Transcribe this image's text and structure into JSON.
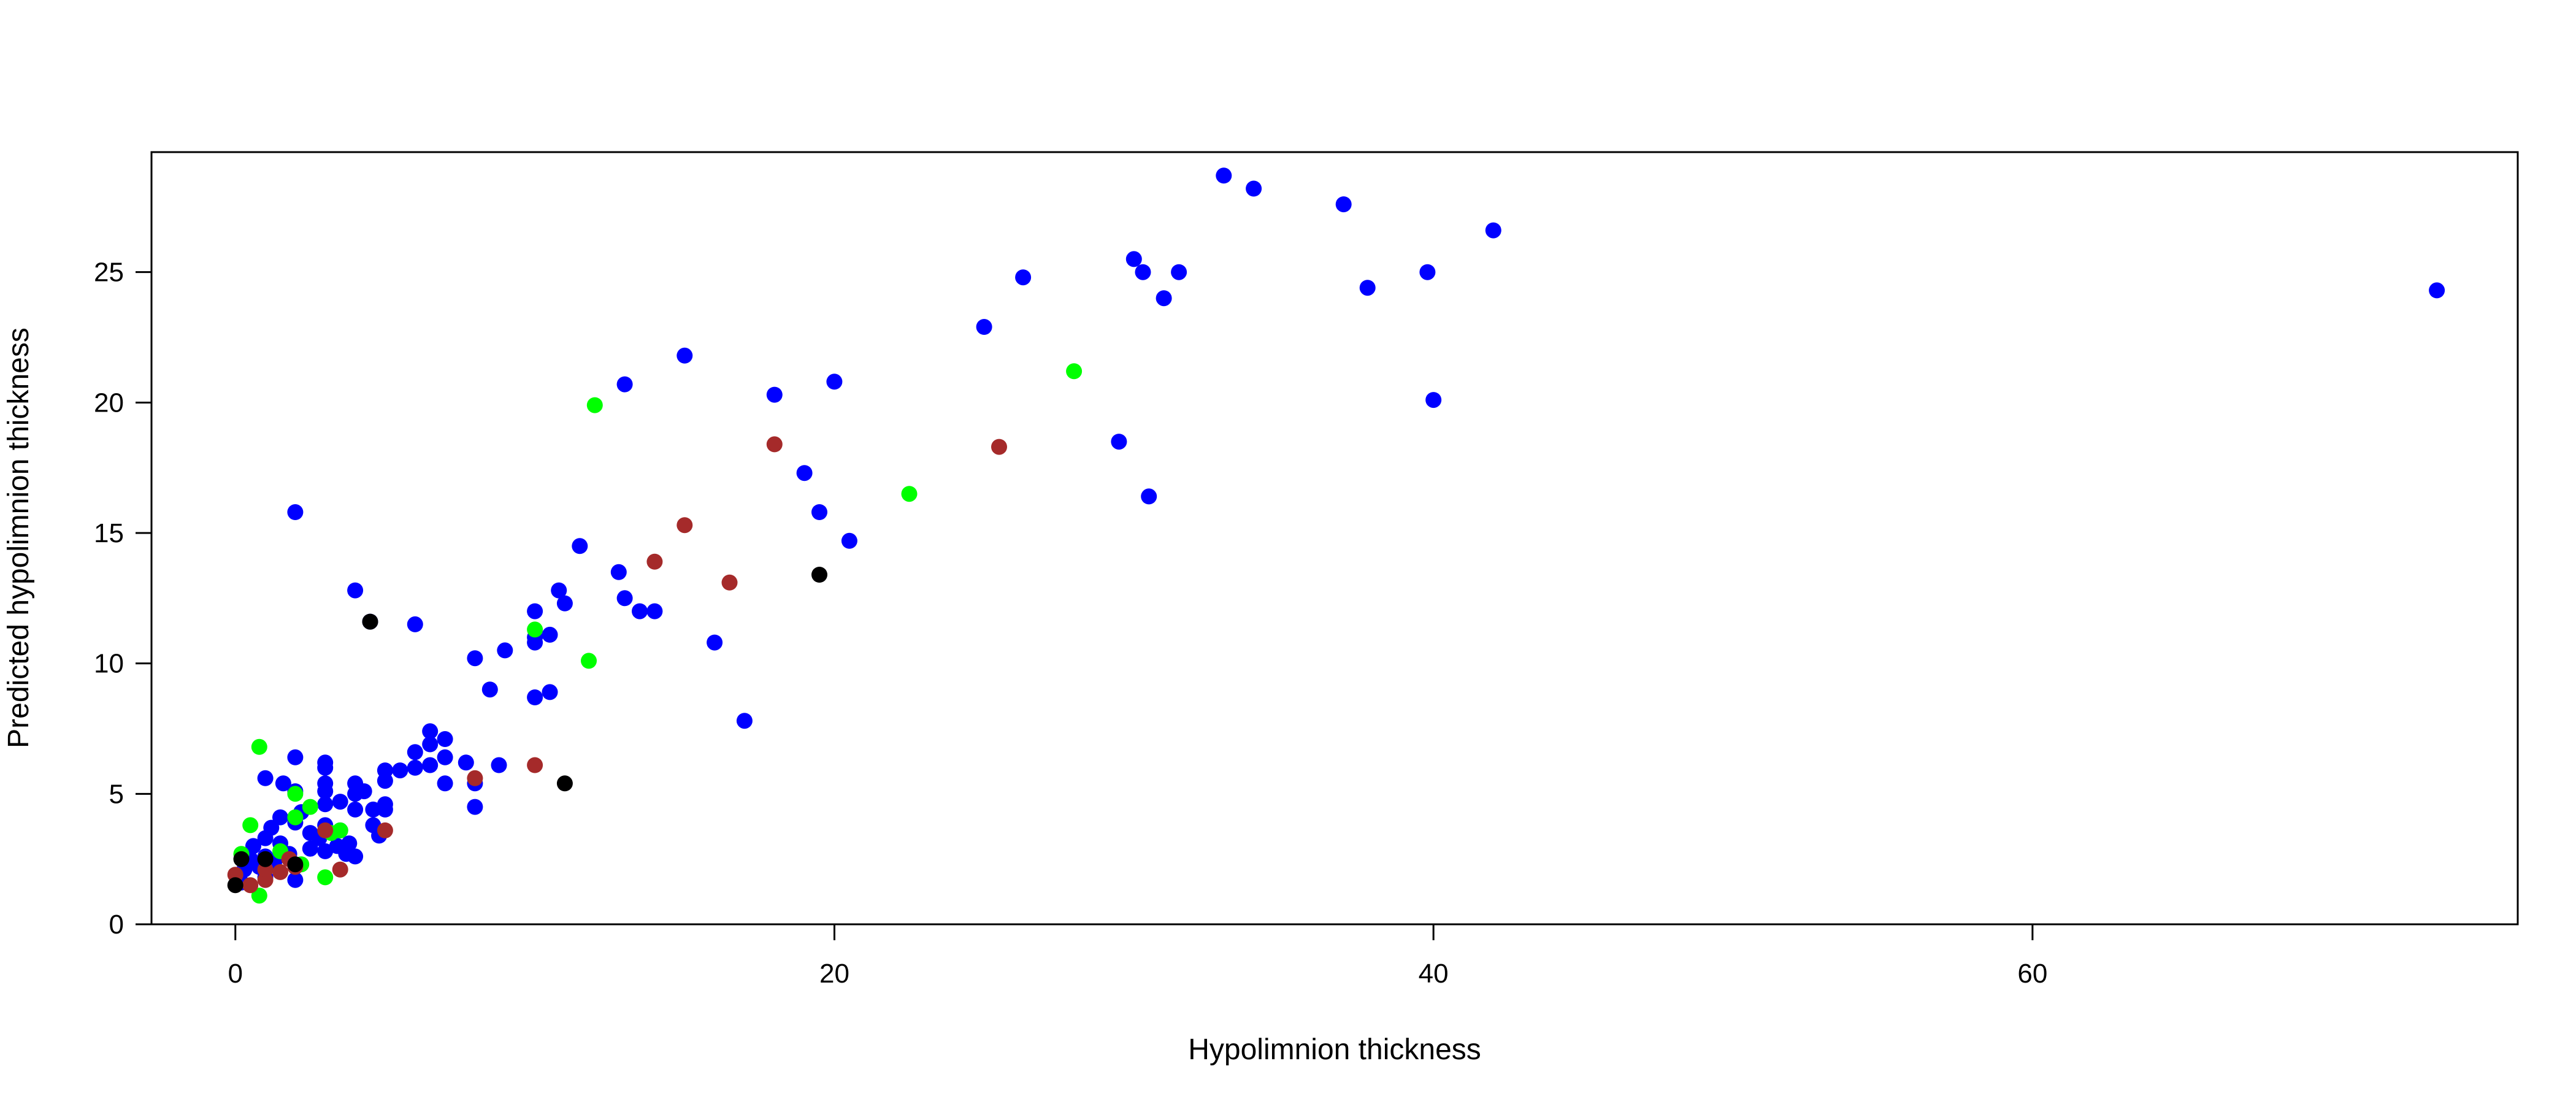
{
  "chart_data": {
    "type": "scatter",
    "title": "",
    "xlabel": "Hypolimnion thickness",
    "ylabel": "Predicted hypolimnion thickness",
    "xlim": [
      -2.8,
      76.2
    ],
    "ylim": [
      0,
      29.6
    ],
    "xticks": [
      0,
      20,
      40,
      60
    ],
    "yticks": [
      0,
      5,
      10,
      15,
      20,
      25
    ],
    "grid": false,
    "legend": "none",
    "series": [
      {
        "color": "#0000ff",
        "points": [
          [
            2,
            15.8
          ],
          [
            4,
            12.8
          ],
          [
            6,
            11.5
          ],
          [
            4.5,
            11.6
          ],
          [
            0.2,
            1.6
          ],
          [
            0.3,
            2.1
          ],
          [
            0.5,
            2.5
          ],
          [
            0.6,
            3
          ],
          [
            0.8,
            2.2
          ],
          [
            1,
            1.8
          ],
          [
            1,
            2.6
          ],
          [
            1,
            3.3
          ],
          [
            1,
            5.6
          ],
          [
            1.2,
            3.7
          ],
          [
            1.3,
            2.4
          ],
          [
            1.5,
            3.1
          ],
          [
            1.5,
            4.1
          ],
          [
            1.6,
            5.4
          ],
          [
            1.8,
            2.7
          ],
          [
            2,
            1.7
          ],
          [
            2,
            2.3
          ],
          [
            2,
            3.9
          ],
          [
            2,
            5.1
          ],
          [
            2,
            6.4
          ],
          [
            2.2,
            4.3
          ],
          [
            2.5,
            2.9
          ],
          [
            2.5,
            3.5
          ],
          [
            2.8,
            3.3
          ],
          [
            3,
            2.8
          ],
          [
            3,
            3.8
          ],
          [
            3,
            4.6
          ],
          [
            3,
            5.1
          ],
          [
            3,
            5.4
          ],
          [
            3,
            6
          ],
          [
            3,
            6.2
          ],
          [
            3.4,
            3
          ],
          [
            3.5,
            3.6
          ],
          [
            3.5,
            4.7
          ],
          [
            3.7,
            2.7
          ],
          [
            3.8,
            3.1
          ],
          [
            4,
            2.6
          ],
          [
            4,
            4.4
          ],
          [
            4,
            5
          ],
          [
            4,
            5.4
          ],
          [
            4.3,
            5.1
          ],
          [
            4.6,
            3.8
          ],
          [
            4.6,
            4.4
          ],
          [
            4.8,
            3.4
          ],
          [
            5,
            4.4
          ],
          [
            5,
            4.6
          ],
          [
            5,
            5.5
          ],
          [
            5,
            5.9
          ],
          [
            5.5,
            5.9
          ],
          [
            6,
            6
          ],
          [
            6,
            6.6
          ],
          [
            6.5,
            6.1
          ],
          [
            6.5,
            6.9
          ],
          [
            6.5,
            7.4
          ],
          [
            7,
            5.4
          ],
          [
            7,
            6.4
          ],
          [
            7,
            7.1
          ],
          [
            7.7,
            6.2
          ],
          [
            8,
            4.5
          ],
          [
            8,
            5.4
          ],
          [
            8,
            10.2
          ],
          [
            8.5,
            9
          ],
          [
            8.8,
            6.1
          ],
          [
            9,
            10.5
          ],
          [
            10,
            8.7
          ],
          [
            10,
            10.8
          ],
          [
            10,
            11
          ],
          [
            10,
            12
          ],
          [
            10.5,
            8.9
          ],
          [
            10.5,
            11.1
          ],
          [
            10.8,
            12.8
          ],
          [
            11,
            12.3
          ],
          [
            11.5,
            14.5
          ],
          [
            12.8,
            13.5
          ],
          [
            13,
            12.5
          ],
          [
            13,
            20.7
          ],
          [
            13.5,
            12
          ],
          [
            14,
            12
          ],
          [
            15,
            21.8
          ],
          [
            16,
            10.8
          ],
          [
            17,
            7.8
          ],
          [
            18,
            20.3
          ],
          [
            19,
            17.3
          ],
          [
            19.5,
            15.8
          ],
          [
            20,
            20.8
          ],
          [
            20.5,
            14.7
          ],
          [
            25,
            22.9
          ],
          [
            26.3,
            24.8
          ],
          [
            29.5,
            18.5
          ],
          [
            30,
            25.5
          ],
          [
            30.3,
            25
          ],
          [
            30.5,
            16.4
          ],
          [
            31,
            24
          ],
          [
            31.5,
            25
          ],
          [
            33,
            28.7
          ],
          [
            34,
            28.2
          ],
          [
            37,
            27.6
          ],
          [
            37.8,
            24.4
          ],
          [
            39.8,
            25
          ],
          [
            40,
            20.1
          ],
          [
            42,
            26.6
          ],
          [
            73.5,
            24.3
          ]
        ]
      },
      {
        "color": "#00ff00",
        "points": [
          [
            0.2,
            2.7
          ],
          [
            0.5,
            3.8
          ],
          [
            0.8,
            1.1
          ],
          [
            0.8,
            6.8
          ],
          [
            1.5,
            2.8
          ],
          [
            2,
            4.1
          ],
          [
            2,
            5
          ],
          [
            2.2,
            2.3
          ],
          [
            2.5,
            4.5
          ],
          [
            3,
            1.8
          ],
          [
            3.2,
            3.5
          ],
          [
            3.5,
            3.6
          ],
          [
            10,
            11.3
          ],
          [
            11.8,
            10.1
          ],
          [
            12,
            19.9
          ],
          [
            22.5,
            16.5
          ],
          [
            28,
            21.2
          ]
        ]
      },
      {
        "color": "#a52a2a",
        "points": [
          [
            0,
            1.9
          ],
          [
            0.5,
            1.5
          ],
          [
            1,
            1.7
          ],
          [
            1,
            2.1
          ],
          [
            1.5,
            2
          ],
          [
            1.8,
            2.5
          ],
          [
            2,
            2.2
          ],
          [
            3,
            3.6
          ],
          [
            3.5,
            2.1
          ],
          [
            5,
            3.6
          ],
          [
            8,
            5.6
          ],
          [
            10,
            6.1
          ],
          [
            14,
            13.9
          ],
          [
            15,
            15.3
          ],
          [
            16.5,
            13.1
          ],
          [
            18,
            18.4
          ],
          [
            25.5,
            18.3
          ]
        ]
      },
      {
        "color": "#000000",
        "points": [
          [
            0,
            1.5
          ],
          [
            0.2,
            2.5
          ],
          [
            1,
            2.5
          ],
          [
            2,
            2.3
          ],
          [
            4.5,
            11.6
          ],
          [
            11,
            5.4
          ],
          [
            19.5,
            13.4
          ]
        ]
      }
    ]
  }
}
